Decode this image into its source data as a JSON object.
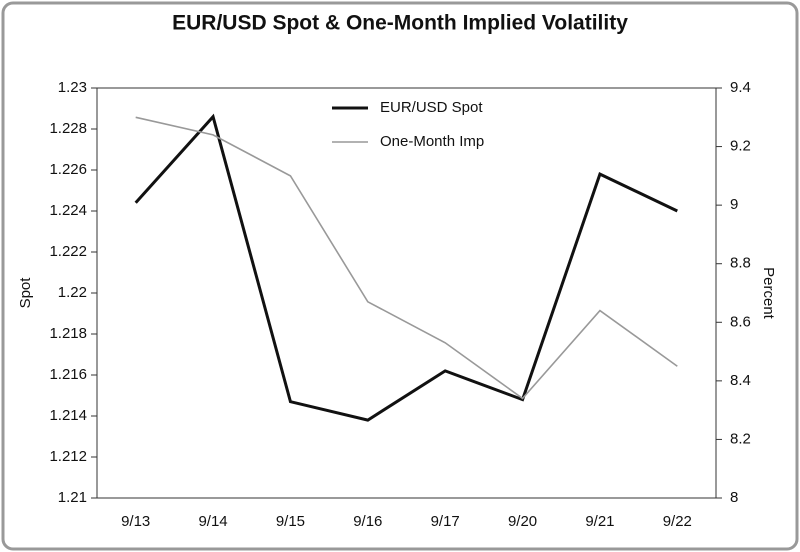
{
  "chart_data": {
    "type": "line",
    "title": "EUR/USD Spot & One-Month Implied Volatility",
    "categories": [
      "9/13",
      "9/14",
      "9/15",
      "9/16",
      "9/17",
      "9/20",
      "9/21",
      "9/22"
    ],
    "series": [
      {
        "name": "EUR/USD Spot",
        "color": "#111111",
        "values": [
          1.2244,
          1.2286,
          1.2147,
          1.2138,
          1.2162,
          1.2148,
          1.2258,
          1.224
        ]
      },
      {
        "name": "One-Month Imp",
        "color": "#999999",
        "axis": "y2",
        "values": [
          9.3,
          9.24,
          9.1,
          8.67,
          8.53,
          8.34,
          8.64,
          8.45
        ]
      }
    ],
    "ylabel": "Spot",
    "y2label": "Percent",
    "ylim": [
      1.21,
      1.23
    ],
    "yticks": [
      1.21,
      1.212,
      1.214,
      1.216,
      1.218,
      1.22,
      1.222,
      1.224,
      1.226,
      1.228,
      1.23
    ],
    "y2lim": [
      8,
      9.4
    ],
    "y2ticks": [
      8,
      8.2,
      8.4,
      8.6,
      8.8,
      9,
      9.2,
      9.4
    ]
  }
}
